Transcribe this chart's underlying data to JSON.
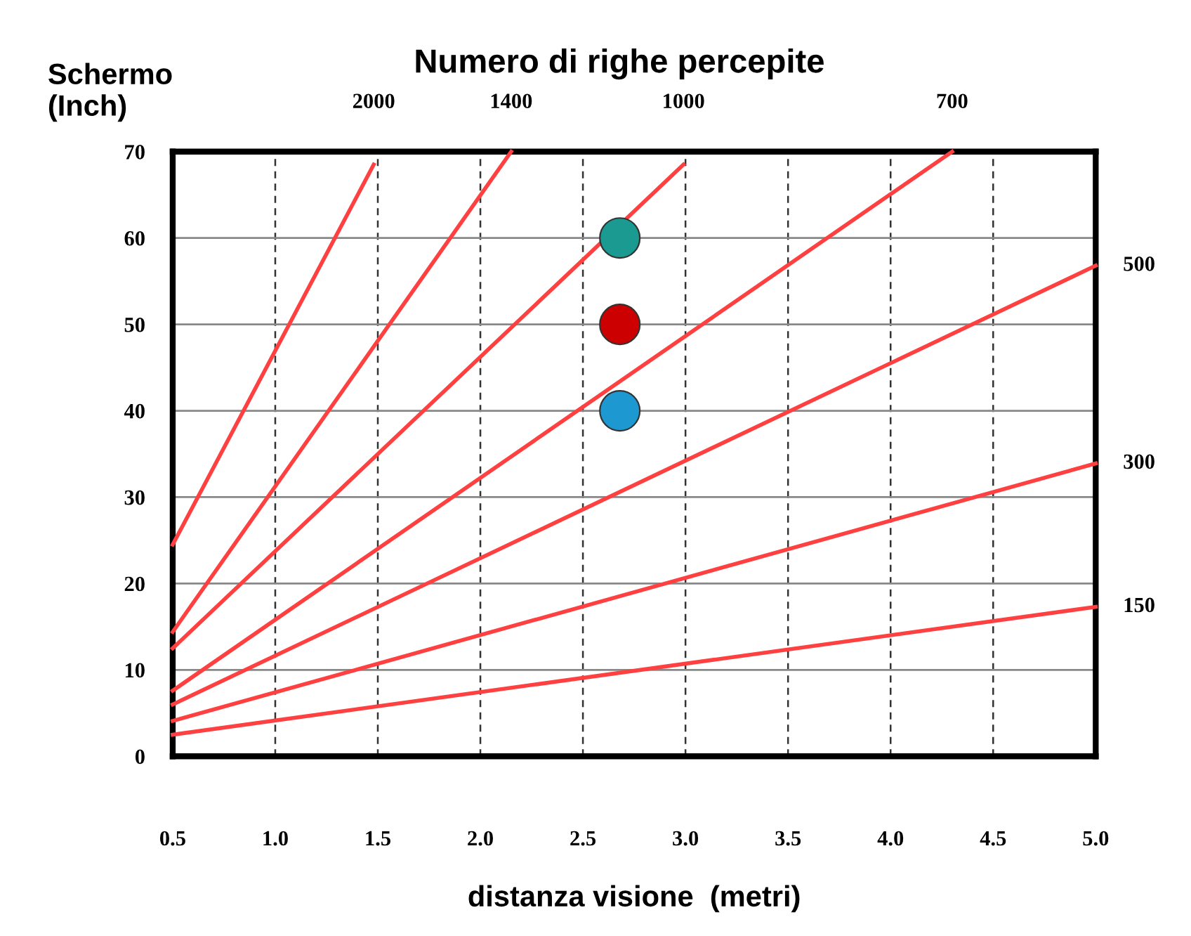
{
  "chart_data": {
    "type": "line",
    "title": "Numero di righe percepite",
    "xlabel": "distanza visione  (metri)",
    "ylabel": "Schermo\n(Inch)",
    "xlim": [
      0.5,
      5.0
    ],
    "ylim": [
      0,
      70
    ],
    "xticks": [
      0.5,
      {
        "value": 1,
        "label": "1.0"
      },
      1.5,
      {
        "value": 2,
        "label": "2.0"
      },
      2.5,
      {
        "value": 3,
        "label": "3.0"
      },
      3.5,
      {
        "value": 4,
        "label": "4.0"
      },
      4.5,
      {
        "value": 5,
        "label": "5.0"
      }
    ],
    "yticks": [
      0,
      10,
      20,
      30,
      40,
      50,
      60,
      70
    ],
    "grid": true,
    "series": [
      {
        "name": "2000",
        "color": "#ff4040",
        "line_style": "solid",
        "marker": "none",
        "x": [
          0.5,
          1.48
        ],
        "values": [
          24.5,
          68.5
        ]
      },
      {
        "name": "1400",
        "color": "#ff4040",
        "line_style": "solid",
        "marker": "none",
        "x": [
          0.5,
          2.15
        ],
        "values": [
          14.4,
          70
        ]
      },
      {
        "name": "1000",
        "color": "#ff4040",
        "line_style": "solid",
        "marker": "none",
        "x": [
          0.5,
          2.99
        ],
        "values": [
          12.5,
          68.5
        ]
      },
      {
        "name": "700",
        "color": "#ff4040",
        "line_style": "solid",
        "marker": "none",
        "x": [
          0.5,
          4.3
        ],
        "values": [
          7.6,
          70
        ]
      },
      {
        "name": "500",
        "color": "#ff4040",
        "line_style": "solid",
        "marker": "none",
        "x": [
          0.5,
          5.0
        ],
        "values": [
          6.0,
          56.8
        ]
      },
      {
        "name": "300",
        "color": "#ff4040",
        "line_style": "solid",
        "marker": "none",
        "x": [
          0.5,
          5.0
        ],
        "values": [
          4.1,
          33.9
        ]
      },
      {
        "name": "150",
        "color": "#ff4040",
        "line_style": "solid",
        "marker": "none",
        "x": [
          0.5,
          5.0
        ],
        "values": [
          2.5,
          17.3
        ]
      },
      {
        "type": "scatter",
        "marker": "circle",
        "x": [
          2.68,
          2.68,
          2.68
        ],
        "values": [
          60,
          50,
          40
        ],
        "colors": [
          "#1a9a90",
          "#cc0000",
          "#1e98d0"
        ]
      }
    ]
  }
}
